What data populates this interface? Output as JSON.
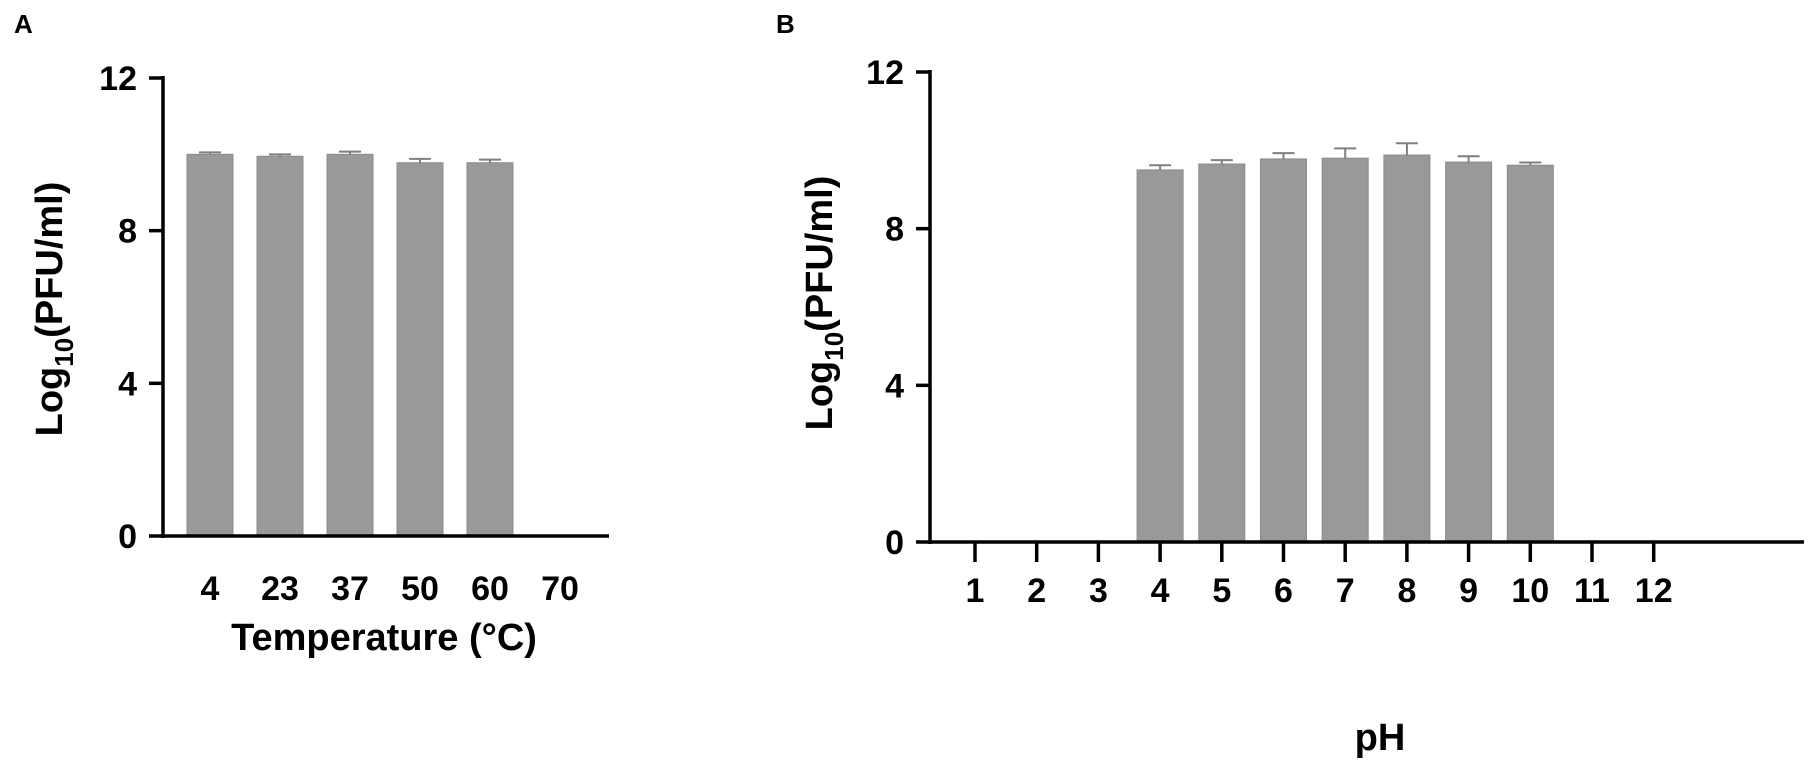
{
  "chart_data": [
    {
      "type": "bar",
      "panel_label": "A",
      "categories": [
        "4",
        "23",
        "37",
        "50",
        "60",
        "70"
      ],
      "values": [
        10.0,
        9.95,
        10.0,
        9.78,
        9.78,
        null
      ],
      "errors": [
        0.05,
        0.05,
        0.07,
        0.1,
        0.08,
        null
      ],
      "ylabel_main": "Log",
      "ylabel_sub": "10",
      "ylabel_rest": "(PFU/ml)",
      "xlabel": "Temperature (°C)",
      "ylim": [
        0,
        12
      ],
      "yticks": [
        "0",
        "4",
        "8",
        "12"
      ],
      "bar_color": "#999999",
      "error_color": "#7f7f7f",
      "grid": false
    },
    {
      "type": "bar",
      "panel_label": "B",
      "categories": [
        "1",
        "2",
        "3",
        "4",
        "5",
        "6",
        "7",
        "8",
        "9",
        "10",
        "11",
        "12"
      ],
      "values": [
        null,
        null,
        null,
        9.5,
        9.65,
        9.78,
        9.8,
        9.88,
        9.7,
        9.62,
        null,
        null
      ],
      "errors": [
        null,
        null,
        null,
        0.12,
        0.1,
        0.15,
        0.25,
        0.3,
        0.15,
        0.07,
        null,
        null
      ],
      "ylabel_main": "Log",
      "ylabel_sub": "10",
      "ylabel_rest": "(PFU/ml)",
      "xlabel": "pH",
      "ylim": [
        0,
        12
      ],
      "yticks": [
        "0",
        "4",
        "8",
        "12"
      ],
      "bar_color": "#999999",
      "error_color": "#7f7f7f",
      "grid": false
    }
  ]
}
